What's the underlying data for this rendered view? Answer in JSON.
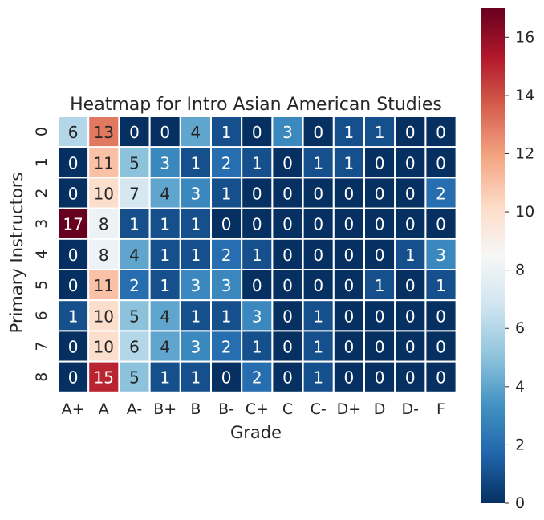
{
  "chart_data": {
    "type": "heatmap",
    "title": "Heatmap for Intro Asian American Studies",
    "xlabel": "Grade",
    "ylabel": "Primary Instructors",
    "x_categories": [
      "A+",
      "A",
      "A-",
      "B+",
      "B",
      "B-",
      "C+",
      "C",
      "C-",
      "D+",
      "D",
      "D-",
      "F"
    ],
    "y_categories": [
      "0",
      "1",
      "2",
      "3",
      "4",
      "5",
      "6",
      "7",
      "8"
    ],
    "values": [
      [
        6,
        13,
        0,
        0,
        4,
        1,
        0,
        3,
        0,
        1,
        1,
        0,
        0
      ],
      [
        0,
        11,
        5,
        3,
        1,
        2,
        1,
        0,
        1,
        1,
        0,
        0,
        0
      ],
      [
        0,
        10,
        7,
        4,
        3,
        1,
        0,
        0,
        0,
        0,
        0,
        0,
        2
      ],
      [
        17,
        8,
        1,
        1,
        1,
        0,
        0,
        0,
        0,
        0,
        0,
        0,
        0
      ],
      [
        0,
        8,
        4,
        1,
        1,
        2,
        1,
        0,
        0,
        0,
        0,
        1,
        3
      ],
      [
        0,
        11,
        2,
        1,
        3,
        3,
        0,
        0,
        0,
        0,
        1,
        0,
        1
      ],
      [
        1,
        10,
        5,
        4,
        1,
        1,
        3,
        0,
        1,
        0,
        0,
        0,
        0
      ],
      [
        0,
        10,
        6,
        4,
        3,
        2,
        1,
        0,
        1,
        0,
        0,
        0,
        0
      ],
      [
        0,
        15,
        5,
        1,
        1,
        0,
        2,
        0,
        1,
        0,
        0,
        0,
        0
      ]
    ],
    "colorbar": {
      "min": 0,
      "max": 17,
      "ticks": [
        0,
        2,
        4,
        6,
        8,
        10,
        12,
        14,
        16
      ],
      "colormap": "RdBu_r"
    },
    "annotate": true,
    "grid": false,
    "legend": "right"
  }
}
